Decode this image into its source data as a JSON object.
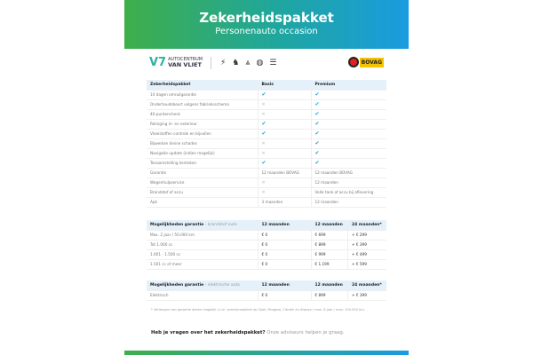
{
  "header": {
    "title": "Zekerheidspakket",
    "subtitle": "Personenauto occasion"
  },
  "logos": {
    "dealer_top": "AUTOCENTRUM",
    "dealer_bottom": "VAN VLIET",
    "bovag": "BOVAG"
  },
  "package_table": {
    "headers": [
      "Zekerheidspakket",
      "Basis",
      "Premium"
    ],
    "rows": [
      [
        "14 dagen omruilgarantie",
        "check",
        "check"
      ],
      [
        "Onderhoudsbeurt volgens fabrieksschema",
        "cross",
        "check"
      ],
      [
        "40-puntencheck",
        "cross",
        "check"
      ],
      [
        "Reiniging in- en exterieur",
        "check",
        "check"
      ],
      [
        "Vloeistoffen controle en bijvullen",
        "check",
        "check"
      ],
      [
        "Bijwerken kleine schades",
        "cross",
        "check"
      ],
      [
        "Navigatie update (indien mogelijk)",
        "cross",
        "check"
      ],
      [
        "Tenaamstelling kenteken",
        "check",
        "check"
      ],
      [
        "Garantie",
        "12 maanden BOVAG",
        "12 maanden BOVAG"
      ],
      [
        "Wegenhulpservice",
        "cross",
        "12 maanden"
      ],
      [
        "Brandstof of accu",
        "cross",
        "Volle tank of accu bij aflevering"
      ],
      [
        "Apk",
        "3 maanden",
        "12 maanden"
      ]
    ]
  },
  "fuel_table": {
    "header": "Mogelijkheden garantie",
    "header_sub": " - brandstof auto",
    "cols": [
      "12 maanden",
      "12 maanden",
      "24 maanden*"
    ],
    "rows": [
      [
        "Max. 2 jaar / 50.000 km",
        "€ 0",
        "€ 699",
        "+ € 299"
      ],
      [
        "Tot 1.000 cc",
        "€ 0",
        "€ 899",
        "+ € 399"
      ],
      [
        "1.001 - 1.500 cc",
        "€ 0",
        "€ 999",
        "+ € 499"
      ],
      [
        "1.501 cc of meer",
        "€ 0",
        "€ 1.199",
        "+ € 599"
      ]
    ]
  },
  "electric_table": {
    "header": "Mogelijkheden garantie",
    "header_sub": " - elektrische auto",
    "cols": [
      "12 maanden",
      "12 maanden",
      "24 maanden*"
    ],
    "rows": [
      [
        "Elektrisch",
        "€ 0",
        "€ 899",
        "+ € 399"
      ]
    ]
  },
  "footnote": "* Verlengen van garantie alleen mogelijk i.c.m. premiumpakket op Opel, Peugeot, Citroën en Always / max. 8 jaar / max. 150.000 km.",
  "question": {
    "bold": "Heb je vragen over het zekerheidspakket?",
    "text": " Onze adviseurs helpen je graag."
  },
  "colors": {
    "green": "#3fae4a",
    "blue": "#1a9be0",
    "check": "#1aa5dc",
    "header_row": "#e4f1fb"
  }
}
